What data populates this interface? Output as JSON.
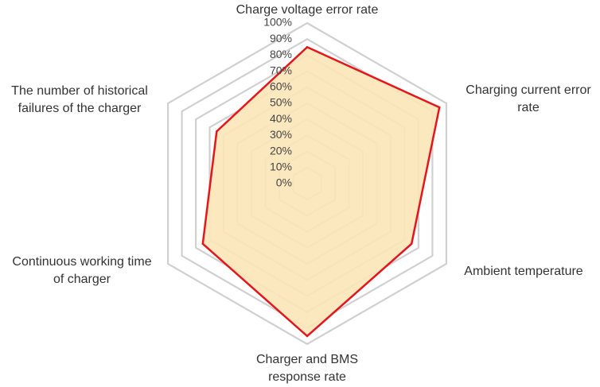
{
  "chart_data": {
    "type": "radar",
    "axes": [
      "Charge voltage error rate",
      "Charging current error rate",
      "Ambient temperature",
      "Charger and BMS response rate",
      "Continuous working time of charger",
      "The number of historical failures of the charger"
    ],
    "axis_label_lines": [
      [
        "Charge voltage error rate"
      ],
      [
        "Charging current error",
        "rate"
      ],
      [
        "Ambient temperature"
      ],
      [
        "Charger and BMS",
        "response rate"
      ],
      [
        "Continuous working time",
        "of charger"
      ],
      [
        "The number of historical",
        "failures of the charger"
      ]
    ],
    "tick_labels": [
      "0%",
      "10%",
      "20%",
      "30%",
      "40%",
      "50%",
      "60%",
      "70%",
      "80%",
      "90%",
      "100%"
    ],
    "rlim": [
      0,
      100
    ],
    "series": [
      {
        "values": [
          85,
          95,
          75,
          95,
          75,
          65
        ]
      }
    ],
    "colors": {
      "grid": "#d0d0d0",
      "line": "#e3161b",
      "fill": "#fbe6b8"
    }
  }
}
